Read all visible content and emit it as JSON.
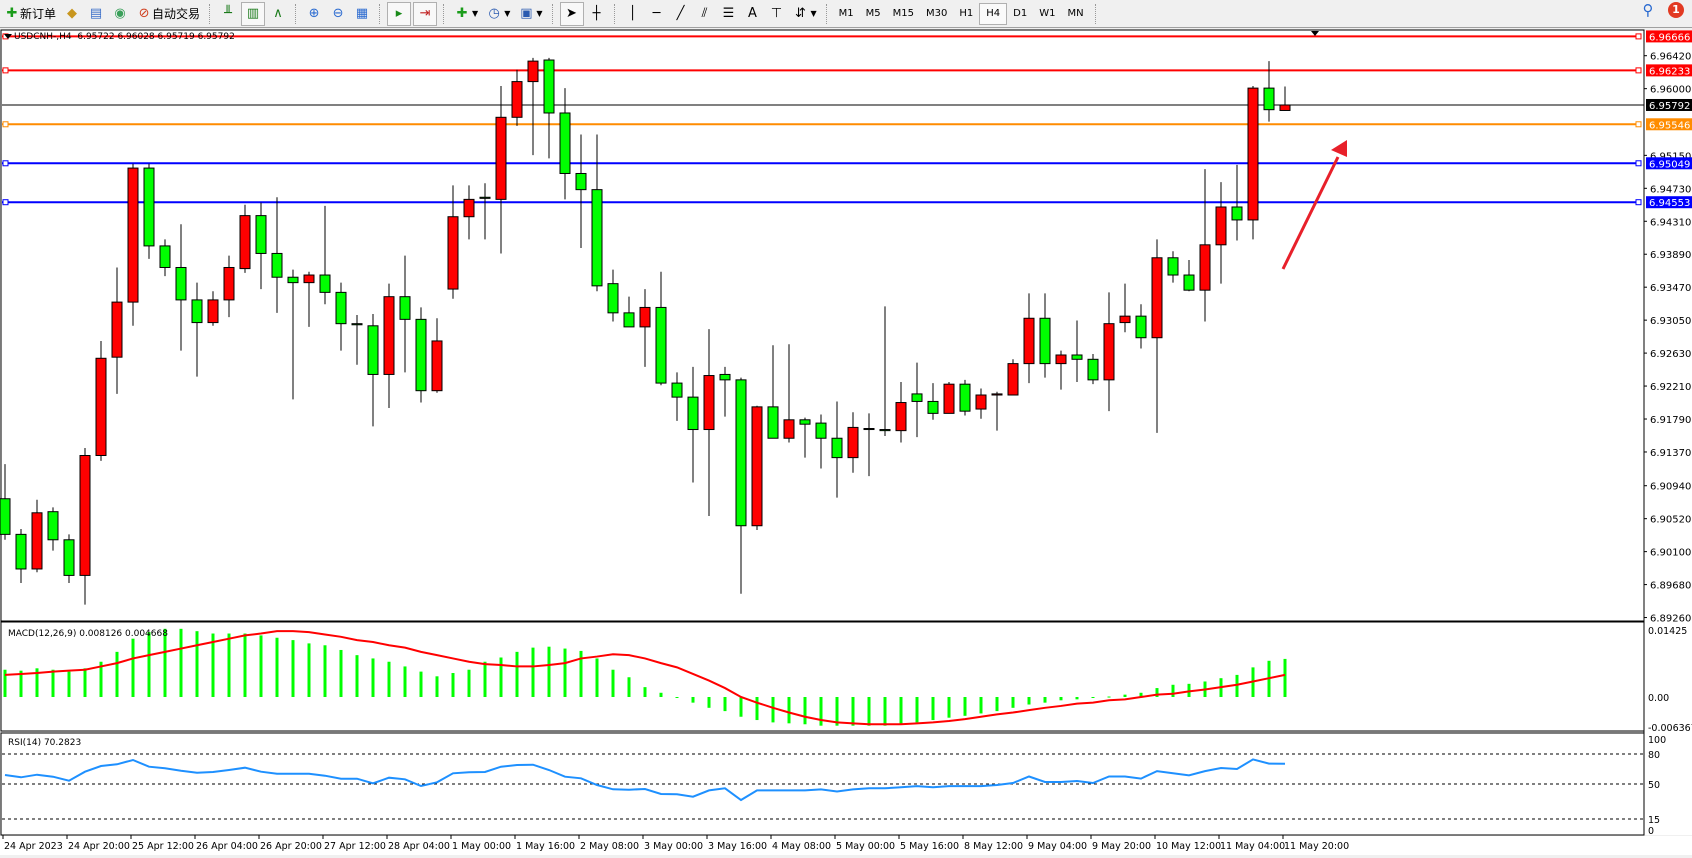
{
  "toolbar": {
    "new_order_label": "新订单",
    "auto_trading_label": "自动交易",
    "timeframes": [
      "M1",
      "M5",
      "M15",
      "M30",
      "H1",
      "H4",
      "D1",
      "W1",
      "MN"
    ],
    "active_timeframe": "H4",
    "notification_count": "1"
  },
  "chart_header": {
    "symbol": "USDCNH-,H4",
    "ohlc_text": "6.95722 6.96028 6.95719 6.95792"
  },
  "indicators": {
    "macd_label": "MACD(12,26,9) 0.008126 0.004668",
    "rsi_label": "RSI(14) 70.2823"
  },
  "colors": {
    "bull": "#ff0000",
    "bear": "#00ff00",
    "macd_hist": "#00ff00",
    "macd_signal": "#ff0000",
    "rsi": "#1e90ff",
    "arrow": "#e8202a"
  },
  "chart_data": {
    "type": "candlestick",
    "symbol": "USDCNH-",
    "timeframe": "H4",
    "price_ticks": [
      "6.96420",
      "6.96000",
      "6.95150",
      "6.94730",
      "6.94310",
      "6.93890",
      "6.93470",
      "6.93050",
      "6.92630",
      "6.92210",
      "6.91790",
      "6.91370",
      "6.90940",
      "6.90520",
      "6.90100",
      "6.89680",
      "6.89260"
    ],
    "ylim": [
      6.8926,
      6.9668
    ],
    "time_labels": [
      "24 Apr 2023",
      "24 Apr 20:00",
      "25 Apr 12:00",
      "26 Apr 04:00",
      "26 Apr 20:00",
      "27 Apr 12:00",
      "28 Apr 04:00",
      "1 May 00:00",
      "1 May 16:00",
      "2 May 08:00",
      "3 May 00:00",
      "3 May 16:00",
      "4 May 08:00",
      "5 May 00:00",
      "5 May 16:00",
      "8 May 12:00",
      "9 May 04:00",
      "9 May 20:00",
      "10 May 12:00",
      "11 May 04:00",
      "11 May 20:00"
    ],
    "ohlc": [
      [
        6.90774,
        6.91215,
        6.90251,
        6.9032
      ],
      [
        6.9032,
        6.90389,
        6.897,
        6.89879
      ],
      [
        6.89879,
        6.90761,
        6.89838,
        6.90595
      ],
      [
        6.90609,
        6.90664,
        6.90113,
        6.90251
      ],
      [
        6.90251,
        6.9032,
        6.897,
        6.89797
      ],
      [
        6.89797,
        6.91421,
        6.89425,
        6.91325
      ],
      [
        6.91325,
        6.92785,
        6.91256,
        6.92564
      ],
      [
        6.92578,
        6.93721,
        6.9211,
        6.9328
      ],
      [
        6.9328,
        6.95043,
        6.92978,
        6.94988
      ],
      [
        6.94988,
        6.95043,
        6.93831,
        6.93996
      ],
      [
        6.93996,
        6.94079,
        6.93611,
        6.93721
      ],
      [
        6.93721,
        6.94272,
        6.92661,
        6.93308
      ],
      [
        6.93308,
        6.93528,
        6.9233,
        6.93019
      ],
      [
        6.93019,
        6.93418,
        6.92978,
        6.93308
      ],
      [
        6.93308,
        6.93873,
        6.93088,
        6.93721
      ],
      [
        6.93707,
        6.9452,
        6.93652,
        6.94382
      ],
      [
        6.94382,
        6.94547,
        6.93446,
        6.939
      ],
      [
        6.939,
        6.94616,
        6.93143,
        6.93597
      ],
      [
        6.93597,
        6.93694,
        6.92041,
        6.93528
      ],
      [
        6.93528,
        6.93666,
        6.92964,
        6.93625
      ],
      [
        6.93625,
        6.94506,
        6.93253,
        6.93404
      ],
      [
        6.93404,
        6.93528,
        6.92661,
        6.93005
      ],
      [
        6.93005,
        6.93115,
        6.92482,
        6.92991
      ],
      [
        6.92978,
        6.93129,
        6.91697,
        6.92358
      ],
      [
        6.92358,
        6.93515,
        6.91931,
        6.93349
      ],
      [
        6.93349,
        6.93873,
        6.92385,
        6.9306
      ],
      [
        6.9306,
        6.93212,
        6.92,
        6.92151
      ],
      [
        6.92151,
        6.93074,
        6.92124,
        6.92785
      ],
      [
        6.93446,
        6.94768,
        6.93322,
        6.94368
      ],
      [
        6.94368,
        6.94768,
        6.94079,
        6.94589
      ],
      [
        6.94616,
        6.94795,
        6.94079,
        6.94602
      ],
      [
        6.94589,
        6.96034,
        6.939,
        6.95635
      ],
      [
        6.95635,
        6.96241,
        6.95525,
        6.9609
      ],
      [
        6.9609,
        6.96392,
        6.95153,
        6.96351
      ],
      [
        6.96365,
        6.96392,
        6.95112,
        6.9569
      ],
      [
        6.9569,
        6.96007,
        6.94589,
        6.94919
      ],
      [
        6.94919,
        6.95415,
        6.93969,
        6.94713
      ],
      [
        6.94713,
        6.95415,
        6.93418,
        6.93487
      ],
      [
        6.93515,
        6.93694,
        6.93033,
        6.93143
      ],
      [
        6.93143,
        6.93349,
        6.92964,
        6.92964
      ],
      [
        6.92964,
        6.93446,
        6.92454,
        6.93212
      ],
      [
        6.93212,
        6.93666,
        6.9222,
        6.92248
      ],
      [
        6.92248,
        6.92385,
        6.91766,
        6.92069
      ],
      [
        6.92069,
        6.92454,
        6.90981,
        6.91656
      ],
      [
        6.91656,
        6.92936,
        6.90554,
        6.92344
      ],
      [
        6.92358,
        6.92454,
        6.91821,
        6.92289
      ],
      [
        6.92289,
        6.92317,
        6.89563,
        6.9043
      ],
      [
        6.9043,
        6.91959,
        6.90375,
        6.91945
      ],
      [
        6.91945,
        6.9273,
        6.91545,
        6.91545
      ],
      [
        6.91545,
        6.92743,
        6.9149,
        6.9178
      ],
      [
        6.9178,
        6.91807,
        6.91298,
        6.91724
      ],
      [
        6.91738,
        6.91848,
        6.9116,
        6.91545
      ],
      [
        6.91545,
        6.92014,
        6.90788,
        6.91298
      ],
      [
        6.91298,
        6.91876,
        6.91105,
        6.91683
      ],
      [
        6.91669,
        6.91862,
        6.91063,
        6.91656
      ],
      [
        6.91656,
        6.93225,
        6.91573,
        6.91642
      ],
      [
        6.91642,
        6.92261,
        6.9149,
        6.92
      ],
      [
        6.9211,
        6.92509,
        6.91559,
        6.92014
      ],
      [
        6.92014,
        6.92248,
        6.9178,
        6.91862
      ],
      [
        6.91862,
        6.92261,
        6.91862,
        6.92234
      ],
      [
        6.92234,
        6.92289,
        6.91835,
        6.9189
      ],
      [
        6.91917,
        6.92179,
        6.91793,
        6.92096
      ],
      [
        6.92096,
        6.92138,
        6.91642,
        6.9211
      ],
      [
        6.92096,
        6.92551,
        6.92096,
        6.92496
      ],
      [
        6.92496,
        6.93391,
        6.92248,
        6.93074
      ],
      [
        6.93074,
        6.93391,
        6.92317,
        6.92496
      ],
      [
        6.92496,
        6.92661,
        6.92165,
        6.92606
      ],
      [
        6.92606,
        6.93046,
        6.92261,
        6.92551
      ],
      [
        6.92551,
        6.92619,
        6.92234,
        6.92289
      ],
      [
        6.92289,
        6.93404,
        6.9189,
        6.93005
      ],
      [
        6.93019,
        6.93515,
        6.92895,
        6.93101
      ],
      [
        6.93101,
        6.93253,
        6.92688,
        6.92826
      ],
      [
        6.92826,
        6.94079,
        6.91614,
        6.93845
      ],
      [
        6.93845,
        6.93928,
        6.93528,
        6.93625
      ],
      [
        6.93625,
        6.93817,
        6.93418,
        6.93432
      ],
      [
        6.93432,
        6.94974,
        6.93033,
        6.9401
      ],
      [
        6.9401,
        6.94809,
        6.93515,
        6.94492
      ],
      [
        6.94492,
        6.95029,
        6.94065,
        6.94327
      ],
      [
        6.94327,
        6.96034,
        6.94079,
        6.96007
      ],
      [
        6.96007,
        6.96351,
        6.9558,
        6.95732
      ],
      [
        6.95722,
        6.96028,
        6.95719,
        6.95792
      ]
    ],
    "current_price": {
      "value": 6.95792,
      "label": "6.95792",
      "color": "#000000"
    },
    "horizontal_lines": [
      {
        "value": 6.96666,
        "label": "6.96666",
        "color": "#ff0000"
      },
      {
        "value": 6.96233,
        "label": "6.96233",
        "color": "#ff0000"
      },
      {
        "value": 6.95546,
        "label": "6.95546",
        "color": "#ff8c00"
      },
      {
        "value": 6.95049,
        "label": "6.95049",
        "color": "#0000ff"
      },
      {
        "value": 6.94553,
        "label": "6.94553",
        "color": "#0000ff"
      }
    ],
    "macd": {
      "ticks": [
        "0.01425",
        "0.00",
        "-0.006367"
      ],
      "ylim": [
        -0.006367,
        0.01425
      ],
      "histogram": [
        0.0058,
        0.0056,
        0.0061,
        0.0058,
        0.0054,
        0.0061,
        0.0075,
        0.0096,
        0.0124,
        0.0138,
        0.0145,
        0.0145,
        0.014,
        0.0135,
        0.0135,
        0.0135,
        0.0131,
        0.0126,
        0.0121,
        0.0114,
        0.011,
        0.01,
        0.0089,
        0.0082,
        0.0075,
        0.0065,
        0.0054,
        0.0044,
        0.0051,
        0.0058,
        0.0075,
        0.0084,
        0.0096,
        0.0105,
        0.0107,
        0.0103,
        0.0098,
        0.0082,
        0.0058,
        0.0042,
        0.0021,
        0.0009,
        -0.0002,
        -0.0012,
        -0.0023,
        -0.003,
        -0.0042,
        -0.0049,
        -0.0054,
        -0.0056,
        -0.0058,
        -0.0061,
        -0.0061,
        -0.0061,
        -0.0061,
        -0.0061,
        -0.0058,
        -0.0054,
        -0.0049,
        -0.0044,
        -0.004,
        -0.0035,
        -0.003,
        -0.0023,
        -0.0016,
        -0.0012,
        -0.0007,
        -0.0005,
        -0.0002,
        0.0001,
        0.0005,
        0.0009,
        0.0019,
        0.0026,
        0.0028,
        0.0033,
        0.004,
        0.0047,
        0.0063,
        0.0077,
        0.0081
      ],
      "signal": [
        0.0047,
        0.0049,
        0.0051,
        0.0054,
        0.0056,
        0.0058,
        0.0065,
        0.0072,
        0.0082,
        0.0089,
        0.0096,
        0.0103,
        0.011,
        0.0117,
        0.0124,
        0.0131,
        0.0135,
        0.014,
        0.014,
        0.0138,
        0.0133,
        0.0128,
        0.0121,
        0.0117,
        0.011,
        0.0105,
        0.0096,
        0.0089,
        0.0082,
        0.0075,
        0.007,
        0.0068,
        0.0065,
        0.0065,
        0.0068,
        0.0072,
        0.0082,
        0.0086,
        0.0091,
        0.0089,
        0.0082,
        0.0072,
        0.0063,
        0.0049,
        0.0035,
        0.0019,
        0.0,
        -0.0012,
        -0.0023,
        -0.0033,
        -0.0042,
        -0.0049,
        -0.0054,
        -0.0056,
        -0.0058,
        -0.0058,
        -0.0058,
        -0.0056,
        -0.0054,
        -0.0051,
        -0.0047,
        -0.0042,
        -0.0037,
        -0.0033,
        -0.0028,
        -0.0023,
        -0.0019,
        -0.0014,
        -0.0012,
        -0.0007,
        -0.0005,
        0.0,
        0.0005,
        0.0007,
        0.0012,
        0.0016,
        0.0021,
        0.0026,
        0.0033,
        0.004,
        0.0047
      ]
    },
    "rsi": {
      "ticks": [
        "100",
        "80",
        "50",
        "15",
        "0"
      ],
      "levels": [
        80,
        50,
        15
      ],
      "ylim": [
        0,
        100
      ],
      "values": [
        59,
        56.7,
        59.3,
        57.3,
        53.3,
        62.3,
        68,
        69.7,
        74,
        67.3,
        65.7,
        63.3,
        61.3,
        62,
        64,
        66.3,
        62.3,
        60.3,
        60.3,
        60.3,
        58.3,
        55.3,
        55.3,
        50.7,
        56.3,
        54.7,
        48,
        51.7,
        60.7,
        61.7,
        62,
        67.3,
        69,
        69.3,
        64,
        57.3,
        55.7,
        49,
        44.7,
        44.3,
        45,
        40,
        39.7,
        37.3,
        43.6,
        45.7,
        34,
        43.6,
        43.6,
        43.6,
        43.6,
        44.6,
        42.5,
        44.6,
        45.7,
        45.7,
        46.8,
        47.9,
        46.8,
        47.9,
        47.9,
        47.9,
        49,
        51,
        57.5,
        52,
        52,
        53,
        51,
        57.5,
        57.5,
        55.4,
        62.9,
        60.7,
        58.6,
        62.9,
        66,
        65,
        74.6,
        70.4,
        70.3
      ]
    }
  }
}
